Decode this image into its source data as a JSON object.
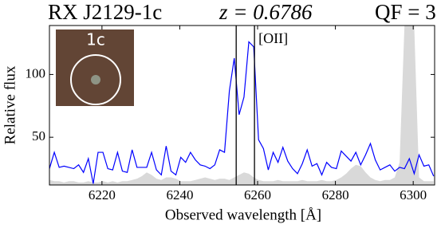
{
  "chart_data": {
    "type": "line",
    "title": [
      "RX J2129-1c",
      "z = 0.6786",
      "QF = 3"
    ],
    "x_label": "Observed wavelength  [Å]",
    "y_label": "Relative flux",
    "inset_label": "1c",
    "line_annotation": "[OII]",
    "vlines": [
      6254.5,
      6259.2
    ],
    "xlim": [
      6206.5,
      6305.5
    ],
    "ylim": [
      12,
      139
    ],
    "xticks": [
      6220,
      6240,
      6260,
      6280,
      6300
    ],
    "yticks": [
      50,
      100
    ],
    "grid": false,
    "x": [
      6206.5,
      6207.75,
      6209,
      6210.25,
      6211.5,
      6212.75,
      6214,
      6215.25,
      6216.5,
      6217.75,
      6219,
      6220.25,
      6221.5,
      6222.75,
      6224,
      6225.25,
      6226.5,
      6227.75,
      6229,
      6230.25,
      6231.5,
      6232.75,
      6234,
      6235.25,
      6236.5,
      6237.75,
      6239,
      6240.25,
      6241.5,
      6242.75,
      6244,
      6245.25,
      6246.5,
      6247.75,
      6249,
      6250.25,
      6251.5,
      6252.75,
      6254,
      6255.25,
      6256.5,
      6257.75,
      6259,
      6260.25,
      6261.5,
      6262.75,
      6264,
      6265.25,
      6266.5,
      6267.75,
      6269,
      6270.25,
      6271.5,
      6272.75,
      6274,
      6275.25,
      6276.5,
      6277.75,
      6279,
      6280.25,
      6281.5,
      6282.75,
      6284,
      6285.25,
      6286.5,
      6287.75,
      6289,
      6290.25,
      6291.5,
      6292.75,
      6294,
      6295.25,
      6296.5,
      6297.75,
      6299,
      6300.25,
      6301.5,
      6302.75,
      6304,
      6305.25
    ],
    "series": [
      {
        "color": "#d9d9d9",
        "fill": true,
        "values": [
          16,
          15,
          15,
          14,
          15,
          15,
          14,
          14,
          15,
          14,
          14,
          15,
          14,
          15,
          14,
          15,
          15,
          16,
          17,
          19,
          22,
          20,
          17,
          16,
          18,
          18,
          17,
          15,
          15,
          15,
          16,
          17,
          18,
          17,
          16,
          17,
          17,
          16,
          18,
          20,
          22,
          21,
          18,
          16,
          15,
          15,
          15,
          16,
          15,
          15,
          15,
          15,
          16,
          15,
          15,
          15,
          16,
          15,
          15,
          16,
          18,
          21,
          25,
          28,
          27,
          22,
          18,
          16,
          15,
          16,
          16,
          18,
          30,
          139,
          139,
          139,
          18,
          15,
          15,
          15
        ]
      },
      {
        "color": "#0000ff",
        "fill": false,
        "values": [
          25,
          38,
          26,
          27,
          26,
          25,
          28,
          22,
          33,
          13,
          38,
          38,
          25,
          24,
          38,
          23,
          22,
          40,
          26,
          26,
          26,
          38,
          24,
          20,
          43,
          23,
          20,
          34,
          30,
          38,
          32,
          28,
          27,
          25,
          28,
          40,
          38,
          87,
          113,
          68,
          82,
          126,
          122,
          48,
          41,
          24,
          38,
          30,
          42,
          31,
          25,
          21,
          29,
          40,
          27,
          29,
          20,
          30,
          26,
          25,
          39,
          35,
          31,
          38,
          28,
          36,
          45,
          32,
          24,
          26,
          28,
          23,
          26,
          25,
          33,
          21,
          36,
          27,
          28,
          19
        ]
      }
    ]
  }
}
